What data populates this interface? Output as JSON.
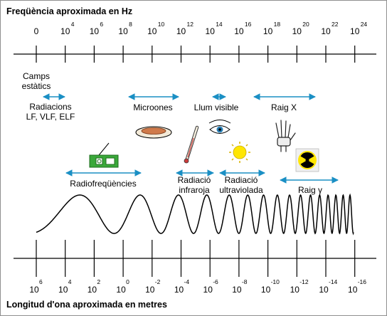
{
  "top_title": "Freqüència aproximada en Hz",
  "bottom_title": "Longitud d'ona aproximada en metres",
  "frequency_axis": [
    {
      "base": "0",
      "exp": ""
    },
    {
      "base": "10",
      "exp": "4"
    },
    {
      "base": "10",
      "exp": "6"
    },
    {
      "base": "10",
      "exp": "8"
    },
    {
      "base": "10",
      "exp": "10"
    },
    {
      "base": "10",
      "exp": "12"
    },
    {
      "base": "10",
      "exp": "14"
    },
    {
      "base": "10",
      "exp": "16"
    },
    {
      "base": "10",
      "exp": "18"
    },
    {
      "base": "10",
      "exp": "20"
    },
    {
      "base": "10",
      "exp": "22"
    },
    {
      "base": "10",
      "exp": "24"
    }
  ],
  "wavelength_axis": [
    {
      "base": "10",
      "exp": "6"
    },
    {
      "base": "10",
      "exp": "4"
    },
    {
      "base": "10",
      "exp": "2"
    },
    {
      "base": "10",
      "exp": "0"
    },
    {
      "base": "10",
      "exp": "-2"
    },
    {
      "base": "10",
      "exp": "-4"
    },
    {
      "base": "10",
      "exp": "-6"
    },
    {
      "base": "10",
      "exp": "-8"
    },
    {
      "base": "10",
      "exp": "-10"
    },
    {
      "base": "10",
      "exp": "-12"
    },
    {
      "base": "10",
      "exp": "-14"
    },
    {
      "base": "10",
      "exp": "-16"
    }
  ],
  "bands": {
    "static": [
      "Camps",
      "estàtics"
    ],
    "lf": [
      "Radiacions",
      "LF, VLF, ELF"
    ],
    "microwave": [
      "Microones"
    ],
    "visible": [
      "Llum visible"
    ],
    "xray": [
      "Raig X"
    ],
    "radio": [
      "Radiofreqüències"
    ],
    "infrared": [
      "Radiació",
      "infraroja"
    ],
    "uv": [
      "Radiació",
      "ultraviolada"
    ],
    "gamma": [
      "Raig γ"
    ]
  },
  "colors": {
    "arrow": "#1a8fc4",
    "axis": "#000000",
    "radio_icon": "#3aa83a",
    "sun": "#ffe600",
    "eye": "#2a7fb5",
    "radiation_bg": "#ffe600"
  },
  "icons": [
    "radio-icon",
    "microwave-dish-icon",
    "thermometer-icon",
    "eye-icon",
    "sun-icon",
    "hand-xray-icon",
    "radiation-icon"
  ]
}
